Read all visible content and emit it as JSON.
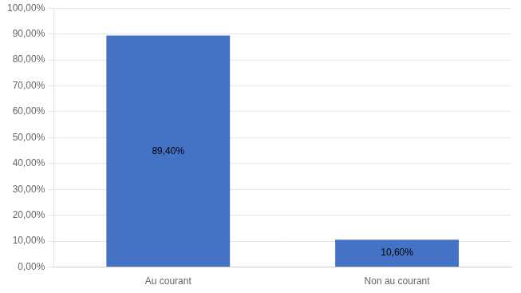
{
  "chart_data": {
    "type": "bar",
    "categories": [
      "Au courant",
      "Non au courant"
    ],
    "values": [
      89.4,
      10.6
    ],
    "value_labels": [
      "89,40%",
      "10,60%"
    ],
    "data_labels": true,
    "color": "#4472C4",
    "ylim": [
      0,
      100
    ],
    "yticks": [
      {
        "value": 0,
        "label": "0,00%"
      },
      {
        "value": 10,
        "label": "10,00%"
      },
      {
        "value": 20,
        "label": "20,00%"
      },
      {
        "value": 30,
        "label": "30,00%"
      },
      {
        "value": 40,
        "label": "40,00%"
      },
      {
        "value": 50,
        "label": "50,00%"
      },
      {
        "value": 60,
        "label": "60,00%"
      },
      {
        "value": 70,
        "label": "70,00%"
      },
      {
        "value": 80,
        "label": "80,00%"
      },
      {
        "value": 90,
        "label": "90,00%"
      },
      {
        "value": 100,
        "label": "100,00%"
      }
    ],
    "grid": true
  }
}
